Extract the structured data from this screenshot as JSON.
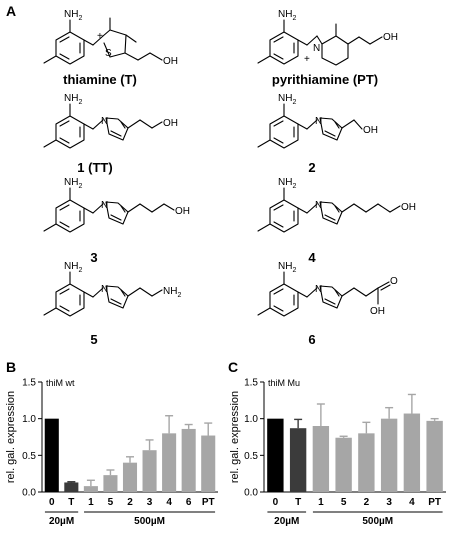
{
  "panels": {
    "a": "A",
    "b": "B",
    "c": "C"
  },
  "molecules": {
    "thiamine": {
      "name": "thiamine (T)"
    },
    "pyrithiamine": {
      "name": "pyrithiamine (PT)"
    },
    "m1": {
      "name": "1 (TT)"
    },
    "m2": {
      "name": "2"
    },
    "m3": {
      "name": "3"
    },
    "m4": {
      "name": "4"
    },
    "m5": {
      "name": "5"
    },
    "m6": {
      "name": "6"
    }
  },
  "atoms": {
    "nh2": "NH",
    "nh2_sub": "2",
    "n": "N",
    "s": "S",
    "oh": "OH",
    "o": "O",
    "plus": "+"
  },
  "chart_data": [
    {
      "type": "bar",
      "panel": "B",
      "annotation": "thiM wt",
      "ylabel": "rel. gal. expression",
      "categories": [
        "0",
        "T",
        "1",
        "5",
        "2",
        "3",
        "4",
        "6",
        "PT"
      ],
      "values": [
        1.0,
        0.13,
        0.08,
        0.23,
        0.4,
        0.57,
        0.8,
        0.86,
        0.77
      ],
      "errors": [
        0.0,
        0.01,
        0.08,
        0.07,
        0.08,
        0.14,
        0.24,
        0.06,
        0.17
      ],
      "colors": [
        "#000000",
        "#3b3b3b",
        "#a6a6a6",
        "#a6a6a6",
        "#a6a6a6",
        "#a6a6a6",
        "#a6a6a6",
        "#a6a6a6",
        "#a6a6a6"
      ],
      "ylim": [
        0,
        1.5
      ],
      "yticks": [
        "0.0",
        "0.5",
        "1.0",
        "1.5"
      ],
      "groups": [
        "20µM",
        "500µM"
      ]
    },
    {
      "type": "bar",
      "panel": "C",
      "annotation": "thiM Mu",
      "ylabel": "rel. gal. expression",
      "categories": [
        "0",
        "T",
        "1",
        "5",
        "2",
        "3",
        "4",
        "PT"
      ],
      "values": [
        1.0,
        0.87,
        0.9,
        0.74,
        0.8,
        1.0,
        1.07,
        0.97
      ],
      "errors": [
        0.0,
        0.12,
        0.3,
        0.02,
        0.15,
        0.15,
        0.26,
        0.03
      ],
      "colors": [
        "#000000",
        "#3b3b3b",
        "#a6a6a6",
        "#a6a6a6",
        "#a6a6a6",
        "#a6a6a6",
        "#a6a6a6",
        "#a6a6a6"
      ],
      "ylim": [
        0,
        1.5
      ],
      "yticks": [
        "0.0",
        "0.5",
        "1.0",
        "1.5"
      ],
      "groups": [
        "20µM",
        "500µM"
      ]
    }
  ]
}
